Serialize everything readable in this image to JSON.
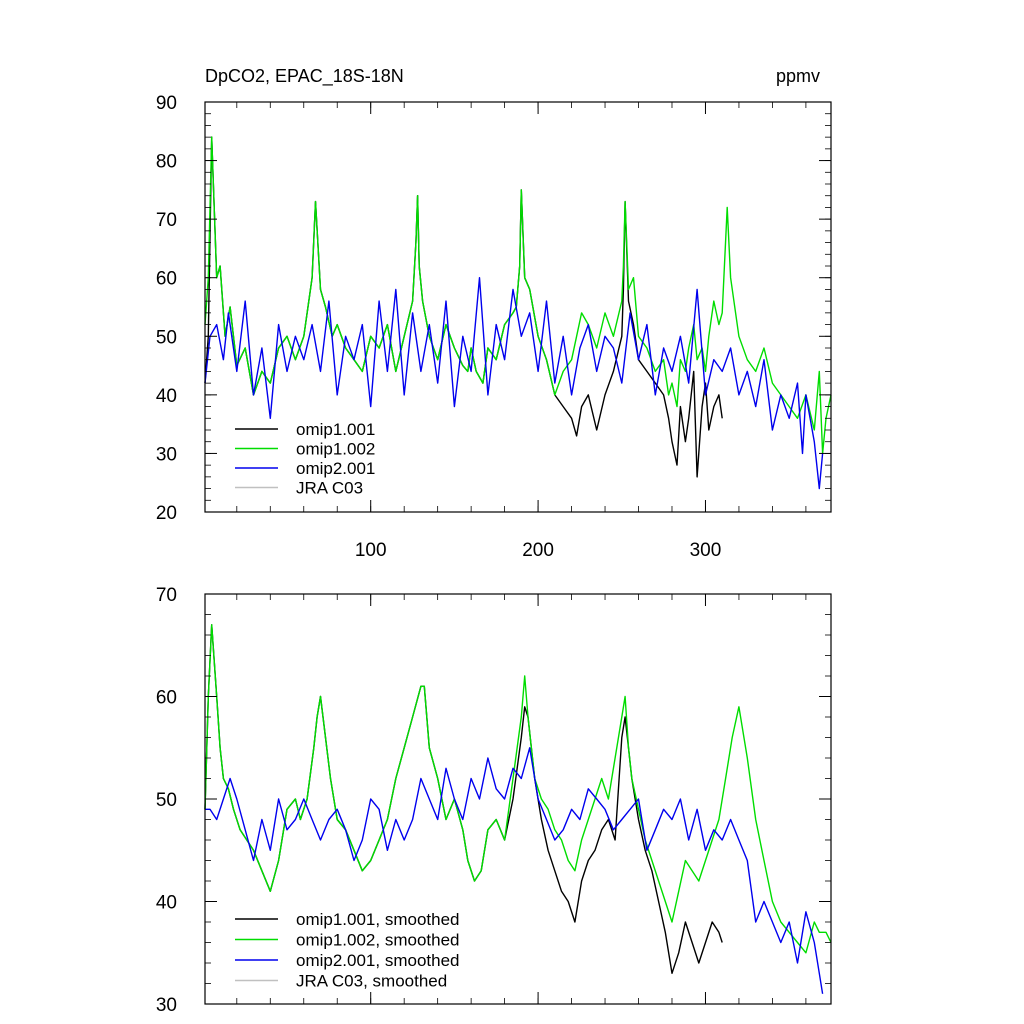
{
  "chart_data": [
    {
      "type": "line",
      "title": "DpCO2, EPAC_18S-18N",
      "units": "ppmv",
      "xlabel": "",
      "ylabel": "",
      "xlim": [
        1,
        375
      ],
      "ylim": [
        20,
        90
      ],
      "xticks": [
        100,
        200,
        300
      ],
      "yticks": [
        20,
        30,
        40,
        50,
        60,
        70,
        80,
        90
      ],
      "legend_position": "lower-left",
      "series": [
        {
          "name": "omip1.001",
          "color": "#000000",
          "x": [
            1,
            3,
            5,
            8,
            10,
            13,
            16,
            20,
            25,
            30,
            35,
            40,
            45,
            50,
            55,
            60,
            63,
            65,
            67,
            70,
            73,
            77,
            80,
            85,
            90,
            95,
            100,
            105,
            110,
            115,
            120,
            125,
            127,
            128,
            129,
            131,
            135,
            140,
            145,
            150,
            155,
            158,
            160,
            163,
            167,
            170,
            175,
            180,
            185,
            187,
            189,
            190,
            192,
            195,
            200,
            205,
            210,
            215,
            220,
            223,
            226,
            230,
            235,
            240,
            245,
            250,
            251,
            252,
            254,
            257,
            260,
            265,
            270,
            275,
            278,
            280,
            283,
            285,
            288,
            290,
            293,
            295,
            298,
            300,
            302,
            305,
            308,
            310
          ],
          "values": [
            42,
            50,
            84,
            60,
            62,
            50,
            55,
            45,
            48,
            40,
            44,
            42,
            48,
            50,
            46,
            50,
            56,
            60,
            73,
            58,
            55,
            50,
            52,
            48,
            46,
            44,
            50,
            48,
            52,
            44,
            50,
            56,
            66,
            74,
            62,
            56,
            50,
            46,
            52,
            48,
            45,
            44,
            48,
            44,
            42,
            48,
            46,
            52,
            54,
            55,
            62,
            75,
            60,
            58,
            50,
            46,
            40,
            38,
            36,
            33,
            38,
            40,
            34,
            40,
            44,
            50,
            58,
            73,
            56,
            52,
            46,
            44,
            42,
            40,
            36,
            32,
            28,
            38,
            32,
            36,
            44,
            26,
            38,
            42,
            34,
            38,
            40,
            36
          ]
        },
        {
          "name": "omip1.002",
          "color": "#00dd00",
          "x": [
            1,
            3,
            5,
            8,
            10,
            13,
            16,
            20,
            25,
            30,
            35,
            40,
            45,
            50,
            55,
            60,
            63,
            65,
            67,
            70,
            73,
            77,
            80,
            85,
            90,
            95,
            100,
            105,
            110,
            115,
            120,
            125,
            127,
            128,
            129,
            131,
            135,
            140,
            145,
            150,
            155,
            158,
            160,
            163,
            167,
            170,
            175,
            180,
            185,
            187,
            189,
            190,
            192,
            195,
            200,
            205,
            210,
            215,
            220,
            223,
            226,
            230,
            235,
            240,
            245,
            250,
            251,
            252,
            254,
            257,
            260,
            265,
            270,
            275,
            278,
            280,
            283,
            285,
            288,
            290,
            293,
            295,
            298,
            300,
            302,
            305,
            308,
            310,
            313,
            315,
            320,
            325,
            330,
            335,
            340,
            345,
            350,
            355,
            360,
            365,
            368,
            370,
            372,
            375
          ],
          "values": [
            52,
            60,
            84,
            60,
            62,
            50,
            55,
            45,
            48,
            40,
            44,
            42,
            48,
            50,
            46,
            50,
            56,
            60,
            73,
            58,
            55,
            50,
            52,
            48,
            46,
            44,
            50,
            48,
            52,
            44,
            50,
            56,
            66,
            74,
            62,
            56,
            50,
            46,
            52,
            48,
            45,
            44,
            48,
            44,
            42,
            48,
            46,
            52,
            54,
            55,
            62,
            75,
            60,
            58,
            50,
            46,
            40,
            44,
            46,
            50,
            54,
            52,
            48,
            54,
            50,
            56,
            62,
            73,
            58,
            60,
            50,
            48,
            44,
            46,
            40,
            42,
            38,
            46,
            44,
            48,
            52,
            46,
            48,
            44,
            50,
            56,
            52,
            54,
            72,
            60,
            50,
            46,
            44,
            48,
            42,
            40,
            38,
            36,
            40,
            34,
            44,
            30,
            36,
            40
          ]
        },
        {
          "name": "omip2.001",
          "color": "#0000ee",
          "x": [
            1,
            4,
            8,
            12,
            15,
            20,
            25,
            30,
            35,
            40,
            45,
            50,
            55,
            60,
            65,
            70,
            75,
            80,
            85,
            90,
            95,
            100,
            105,
            110,
            115,
            120,
            125,
            130,
            135,
            140,
            145,
            150,
            155,
            160,
            165,
            170,
            175,
            180,
            185,
            190,
            195,
            200,
            205,
            210,
            215,
            220,
            225,
            230,
            235,
            240,
            245,
            250,
            255,
            260,
            265,
            270,
            275,
            280,
            285,
            290,
            295,
            300,
            305,
            310,
            315,
            320,
            325,
            330,
            335,
            340,
            345,
            350,
            355,
            358,
            360,
            365,
            368,
            370
          ],
          "values": [
            42,
            50,
            52,
            46,
            54,
            44,
            56,
            40,
            48,
            36,
            52,
            44,
            50,
            46,
            52,
            44,
            56,
            40,
            50,
            46,
            52,
            38,
            56,
            44,
            58,
            40,
            54,
            44,
            52,
            42,
            56,
            38,
            50,
            44,
            60,
            40,
            52,
            46,
            58,
            50,
            54,
            44,
            56,
            42,
            50,
            40,
            48,
            52,
            44,
            50,
            48,
            42,
            54,
            46,
            52,
            40,
            48,
            44,
            50,
            42,
            58,
            40,
            46,
            44,
            48,
            40,
            44,
            38,
            46,
            34,
            40,
            36,
            42,
            30,
            40,
            32,
            24,
            30
          ]
        }
      ]
    },
    {
      "type": "line",
      "title": "",
      "xlabel": "",
      "ylabel": "",
      "xlim": [
        1,
        375
      ],
      "ylim": [
        30,
        70
      ],
      "xticks": [
        100,
        200,
        300
      ],
      "yticks": [
        30,
        40,
        50,
        60,
        70
      ],
      "legend_position": "lower-left",
      "series": [
        {
          "name": "omip1.001, smoothed",
          "color": "#000000",
          "x": [
            1,
            3,
            5,
            8,
            10,
            12,
            15,
            18,
            22,
            26,
            30,
            35,
            40,
            45,
            50,
            55,
            58,
            62,
            66,
            68,
            70,
            73,
            76,
            80,
            85,
            90,
            95,
            100,
            105,
            110,
            115,
            120,
            125,
            130,
            132,
            135,
            140,
            145,
            150,
            155,
            158,
            162,
            166,
            170,
            175,
            180,
            185,
            190,
            192,
            194,
            198,
            202,
            206,
            210,
            214,
            218,
            222,
            226,
            230,
            234,
            238,
            242,
            246,
            250,
            252,
            254,
            256,
            260,
            264,
            268,
            272,
            276,
            280,
            284,
            288,
            292,
            296,
            300,
            304,
            308,
            310
          ],
          "values": [
            49,
            60,
            67,
            60,
            55,
            52,
            51,
            49,
            47,
            46,
            45,
            43,
            41,
            44,
            49,
            50,
            48,
            50,
            55,
            58,
            60,
            56,
            52,
            48,
            47,
            45,
            43,
            44,
            46,
            48,
            52,
            55,
            58,
            61,
            61,
            55,
            52,
            48,
            50,
            47,
            44,
            42,
            43,
            47,
            48,
            46,
            50,
            56,
            59,
            58,
            52,
            48,
            45,
            43,
            41,
            40,
            38,
            42,
            44,
            45,
            47,
            48,
            46,
            56,
            58,
            55,
            52,
            48,
            45,
            43,
            40,
            37,
            33,
            35,
            38,
            36,
            34,
            36,
            38,
            37,
            36
          ]
        },
        {
          "name": "omip1.002, smoothed",
          "color": "#00dd00",
          "x": [
            1,
            3,
            5,
            8,
            10,
            12,
            15,
            18,
            22,
            26,
            30,
            35,
            40,
            45,
            50,
            55,
            58,
            62,
            66,
            68,
            70,
            73,
            76,
            80,
            85,
            90,
            95,
            100,
            105,
            110,
            115,
            120,
            125,
            130,
            132,
            135,
            140,
            145,
            150,
            155,
            158,
            162,
            166,
            170,
            175,
            180,
            185,
            190,
            192,
            194,
            198,
            202,
            206,
            210,
            214,
            218,
            222,
            226,
            230,
            234,
            238,
            242,
            246,
            250,
            252,
            254,
            256,
            260,
            264,
            268,
            272,
            276,
            280,
            284,
            288,
            292,
            296,
            300,
            304,
            308,
            312,
            316,
            320,
            325,
            330,
            335,
            340,
            345,
            350,
            355,
            360,
            365,
            368,
            372,
            375
          ],
          "values": [
            49,
            60,
            67,
            60,
            55,
            52,
            51,
            49,
            47,
            46,
            45,
            43,
            41,
            44,
            49,
            50,
            48,
            50,
            55,
            58,
            60,
            56,
            52,
            48,
            47,
            45,
            43,
            44,
            46,
            48,
            52,
            55,
            58,
            61,
            61,
            55,
            52,
            48,
            50,
            47,
            44,
            42,
            43,
            47,
            48,
            46,
            52,
            58,
            62,
            58,
            52,
            50,
            49,
            47,
            46,
            44,
            43,
            46,
            48,
            50,
            52,
            50,
            54,
            58,
            60,
            55,
            52,
            49,
            46,
            44,
            42,
            40,
            38,
            41,
            44,
            43,
            42,
            44,
            46,
            48,
            52,
            56,
            59,
            54,
            48,
            44,
            40,
            38,
            37,
            36,
            35,
            38,
            37,
            37,
            36
          ]
        },
        {
          "name": "omip2.001, smoothed",
          "color": "#0000ee",
          "x": [
            1,
            4,
            8,
            12,
            16,
            20,
            25,
            30,
            35,
            40,
            45,
            50,
            55,
            60,
            65,
            70,
            75,
            80,
            85,
            90,
            95,
            100,
            105,
            110,
            115,
            120,
            125,
            130,
            135,
            140,
            145,
            150,
            155,
            160,
            165,
            170,
            175,
            180,
            185,
            190,
            195,
            200,
            205,
            210,
            215,
            220,
            225,
            230,
            235,
            240,
            245,
            250,
            255,
            260,
            265,
            270,
            275,
            280,
            285,
            290,
            295,
            300,
            305,
            310,
            315,
            320,
            325,
            330,
            335,
            340,
            345,
            350,
            355,
            360,
            365,
            368,
            370
          ],
          "values": [
            49,
            49,
            48,
            50,
            52,
            50,
            47,
            44,
            48,
            45,
            50,
            47,
            48,
            50,
            48,
            46,
            48,
            49,
            47,
            44,
            46,
            50,
            49,
            45,
            48,
            46,
            48,
            52,
            50,
            48,
            53,
            50,
            48,
            52,
            50,
            54,
            51,
            50,
            53,
            52,
            55,
            50,
            48,
            46,
            47,
            49,
            48,
            51,
            50,
            49,
            47,
            48,
            49,
            50,
            45,
            47,
            49,
            48,
            50,
            46,
            49,
            45,
            47,
            46,
            48,
            46,
            44,
            38,
            40,
            38,
            36,
            38,
            34,
            39,
            36,
            33,
            31
          ]
        }
      ]
    }
  ],
  "labels": {
    "top_title": "DpCO2, EPAC_18S-18N",
    "top_units": "ppmv",
    "top_legend": [
      "omip1.001",
      "omip1.002",
      "omip2.001",
      "JRA C03"
    ],
    "bottom_legend": [
      "omip1.001, smoothed",
      "omip1.002, smoothed",
      "omip2.001, smoothed",
      "JRA C03, smoothed"
    ],
    "legend_colors": [
      "#000000",
      "#00dd00",
      "#0000ee",
      "#c0c0c0"
    ]
  }
}
